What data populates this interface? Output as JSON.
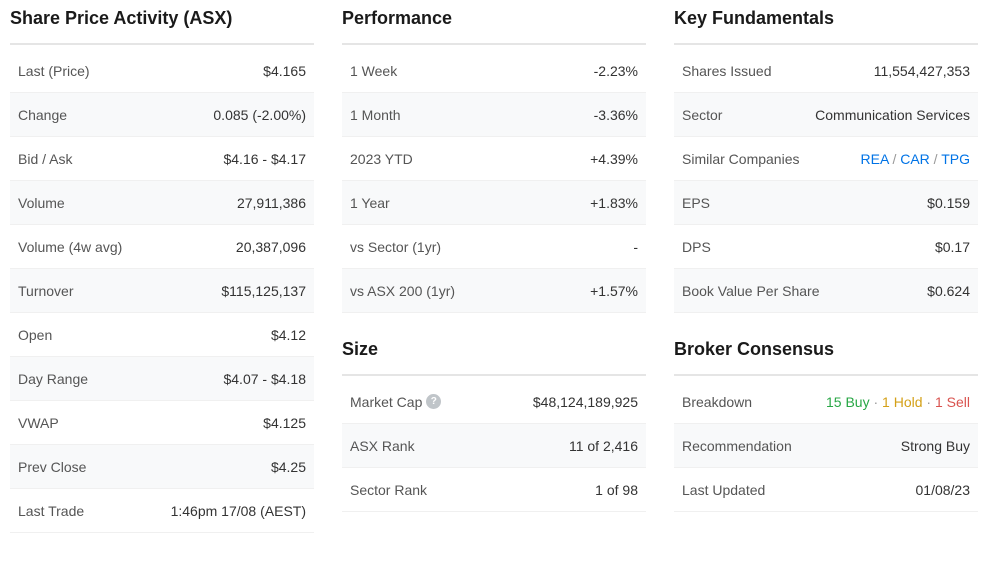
{
  "colors": {
    "negative": "#d9534f",
    "positive": "#28a745",
    "link": "#0073e6",
    "gold": "#d4a017",
    "text": "#333333",
    "label": "#555555",
    "border": "#e5e5e5",
    "row_alt_bg": "#f8f9fa"
  },
  "share_price": {
    "title": "Share Price Activity (ASX)",
    "rows": {
      "last_price": {
        "label": "Last (Price)",
        "value": "$4.165"
      },
      "change": {
        "label": "Change",
        "value": "0.085 (-2.00%)"
      },
      "bid_ask": {
        "label": "Bid / Ask",
        "value": "$4.16 - $4.17"
      },
      "volume": {
        "label": "Volume",
        "value": "27,911,386"
      },
      "volume_4w": {
        "label": "Volume (4w avg)",
        "value": "20,387,096"
      },
      "turnover": {
        "label": "Turnover",
        "value": "$115,125,137"
      },
      "open": {
        "label": "Open",
        "value": "$4.12"
      },
      "day_range": {
        "label": "Day Range",
        "value": "$4.07 - $4.18"
      },
      "vwap": {
        "label": "VWAP",
        "value": "$4.125"
      },
      "prev_close": {
        "label": "Prev Close",
        "value": "$4.25"
      },
      "last_trade": {
        "label": "Last Trade",
        "value": "1:46pm 17/08 (AEST)"
      }
    }
  },
  "performance": {
    "title": "Performance",
    "rows": {
      "week1": {
        "label": "1 Week",
        "value": "-2.23%"
      },
      "month1": {
        "label": "1 Month",
        "value": "-3.36%"
      },
      "ytd": {
        "label": "2023 YTD",
        "value": "+4.39%"
      },
      "year1": {
        "label": "1 Year",
        "value": "+1.83%"
      },
      "vs_sector": {
        "label": "vs Sector (1yr)",
        "value": "-"
      },
      "vs_asx200": {
        "label": "vs ASX 200 (1yr)",
        "value": "+1.57%"
      }
    }
  },
  "size": {
    "title": "Size",
    "rows": {
      "market_cap": {
        "label": "Market Cap",
        "value": "$48,124,189,925"
      },
      "asx_rank": {
        "label": "ASX Rank",
        "value": "11 of 2,416"
      },
      "sector_rank": {
        "label": "Sector Rank",
        "value": "1 of 98"
      }
    }
  },
  "fundamentals": {
    "title": "Key Fundamentals",
    "rows": {
      "shares_issued": {
        "label": "Shares Issued",
        "value": "11,554,427,353"
      },
      "sector": {
        "label": "Sector",
        "value": "Communication Services"
      },
      "similar": {
        "label": "Similar Companies",
        "items": [
          "REA",
          "CAR",
          "TPG"
        ],
        "sep": " / "
      },
      "eps": {
        "label": "EPS",
        "value": "$0.159"
      },
      "dps": {
        "label": "DPS",
        "value": "$0.17"
      },
      "bvps": {
        "label": "Book Value Per Share",
        "value": "$0.624"
      }
    }
  },
  "broker": {
    "title": "Broker Consensus",
    "rows": {
      "breakdown": {
        "label": "Breakdown",
        "buy": "15 Buy",
        "hold": "1 Hold",
        "sell": "1 Sell",
        "dot": " · "
      },
      "recommendation": {
        "label": "Recommendation",
        "value": "Strong Buy"
      },
      "last_updated": {
        "label": "Last Updated",
        "value": "01/08/23"
      }
    }
  },
  "help_glyph": "?"
}
